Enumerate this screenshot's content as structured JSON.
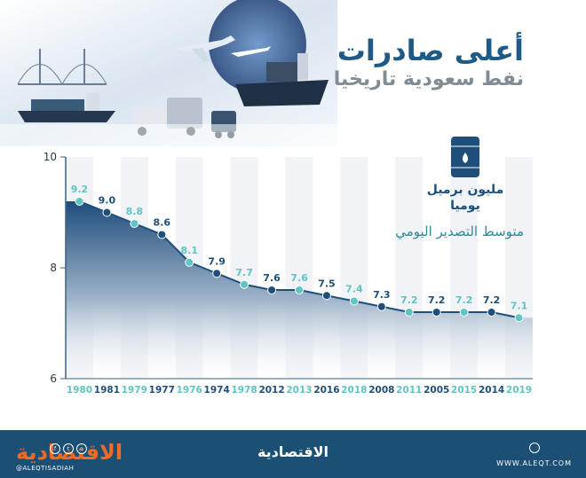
{
  "title": "أعلى صادرات",
  "subtitle": "نفط سعودية تاريخيا",
  "unit_lines": [
    "مليون برميل",
    "يوميا"
  ],
  "caption": "متوسط التصدير اليومي",
  "brand_logo_text": "الاقتصادية",
  "brand_handle": "@ALEQTISADIAH",
  "brand_center": "الاقتصادية",
  "site_url": "WWW.ALEQT.COM",
  "colors": {
    "brand_blue": "#1b4f73",
    "brand_orange": "#f26a24",
    "title_blue": "#1f5a86",
    "teal": "#5fc4c4",
    "navy": "#1d4f7a"
  },
  "icons": [
    "oil-barrel-icon",
    "ship-icon",
    "plane-icon",
    "truck-icon",
    "facebook-icon",
    "twitter-icon",
    "instagram-icon",
    "globe-icon"
  ],
  "chart_data": {
    "type": "area",
    "categories": [
      "1980",
      "1981",
      "1979",
      "1977",
      "1976",
      "1974",
      "1978",
      "2012",
      "2013",
      "2016",
      "2018",
      "2008",
      "2011",
      "2005",
      "2015",
      "2014",
      "2019"
    ],
    "values": [
      9.2,
      9.0,
      8.8,
      8.6,
      8.1,
      7.9,
      7.7,
      7.6,
      7.6,
      7.5,
      7.4,
      7.3,
      7.2,
      7.2,
      7.2,
      7.2,
      7.1
    ],
    "value_labels": [
      "9.2",
      "9.0",
      "8.8",
      "8.6",
      "8.1",
      "7.9",
      "7.7",
      "7.6",
      "7.6",
      "7.5",
      "7.4",
      "7.3",
      "7.2",
      "7.2",
      "7.2",
      "7.2",
      "7.1"
    ],
    "y_ticks": [
      "10",
      "8",
      "6"
    ],
    "tick_values": [
      10,
      8,
      6
    ],
    "ylim": [
      6,
      10
    ],
    "grid": true,
    "point_colors": [
      "teal",
      "navy",
      "teal",
      "navy",
      "teal",
      "navy",
      "teal",
      "navy",
      "teal",
      "navy",
      "teal",
      "navy",
      "teal",
      "navy",
      "teal",
      "navy",
      "teal"
    ]
  }
}
